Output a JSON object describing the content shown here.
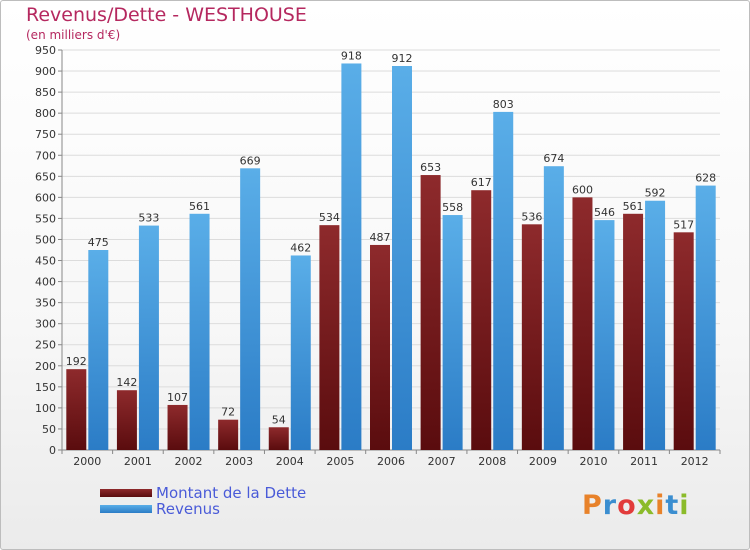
{
  "chart_data": {
    "type": "bar",
    "title": "Revenus/Dette - WESTHOUSE",
    "subtitle": "(en milliers d'€)",
    "xlabel": "",
    "ylabel": "",
    "ylim": [
      0,
      950
    ],
    "yticks": [
      0,
      50,
      100,
      150,
      200,
      250,
      300,
      350,
      400,
      450,
      500,
      550,
      600,
      650,
      700,
      750,
      800,
      850,
      900,
      950
    ],
    "grid": true,
    "legend_position": "bottom-left",
    "categories": [
      "2000",
      "2001",
      "2002",
      "2003",
      "2004",
      "2005",
      "2006",
      "2007",
      "2008",
      "2009",
      "2010",
      "2011",
      "2012"
    ],
    "series": [
      {
        "name": "Montant de la Dette",
        "color": "#7a1a1c",
        "values": [
          192,
          142,
          107,
          72,
          54,
          534,
          487,
          653,
          617,
          536,
          600,
          561,
          517
        ]
      },
      {
        "name": "Revenus",
        "color": "#3a8ed6",
        "values": [
          475,
          533,
          561,
          669,
          462,
          918,
          912,
          558,
          803,
          674,
          546,
          592,
          628
        ]
      }
    ]
  },
  "logo": {
    "text": "Proxiti",
    "letter_colors": [
      "#e8822a",
      "#3b8ed0",
      "#e23b3b",
      "#8bbb2a",
      "#e8822a",
      "#3b8ed0",
      "#8bbb2a"
    ]
  }
}
